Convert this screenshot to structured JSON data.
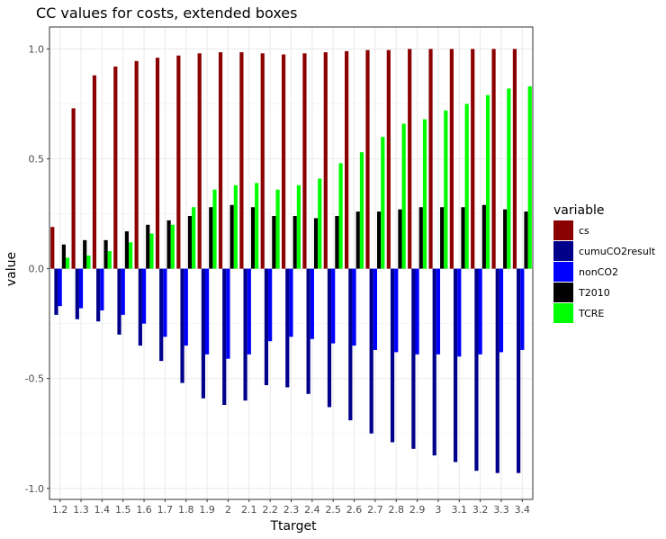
{
  "chart_data": {
    "type": "bar",
    "title": "CC values for costs, extended boxes",
    "xlabel": "Ttarget",
    "ylabel": "value",
    "ylim": [
      -1.05,
      1.1
    ],
    "yticks": [
      -1.0,
      -0.5,
      0.0,
      0.5,
      1.0
    ],
    "ytick_labels": [
      "-1.0",
      "-0.5",
      "0.0",
      "0.5",
      "1.0"
    ],
    "grid": true,
    "legend_title": "variable",
    "legend_position": "right",
    "categories": [
      "1.2",
      "1.3",
      "1.4",
      "1.5",
      "1.6",
      "1.7",
      "1.8",
      "1.9",
      "2",
      "2.1",
      "2.2",
      "2.3",
      "2.4",
      "2.5",
      "2.6",
      "2.7",
      "2.8",
      "2.9",
      "3",
      "3.1",
      "3.2",
      "3.3",
      "3.4"
    ],
    "series": [
      {
        "name": "cs",
        "color": "#8B0000",
        "values": [
          0.19,
          0.73,
          0.88,
          0.92,
          0.945,
          0.96,
          0.97,
          0.98,
          0.985,
          0.985,
          0.98,
          0.975,
          0.98,
          0.985,
          0.99,
          0.995,
          0.995,
          1.0,
          1.0,
          1.0,
          1.0,
          1.0,
          1.0
        ]
      },
      {
        "name": "cumuCO2result",
        "color": "#00008B",
        "values": [
          -0.21,
          -0.23,
          -0.24,
          -0.3,
          -0.35,
          -0.42,
          -0.52,
          -0.59,
          -0.62,
          -0.6,
          -0.53,
          -0.54,
          -0.57,
          -0.63,
          -0.69,
          -0.75,
          -0.79,
          -0.82,
          -0.85,
          -0.88,
          -0.92,
          -0.93,
          -0.93
        ]
      },
      {
        "name": "nonCO2",
        "color": "#0000FF",
        "values": [
          -0.17,
          -0.18,
          -0.19,
          -0.21,
          -0.25,
          -0.31,
          -0.35,
          -0.39,
          -0.41,
          -0.39,
          -0.33,
          -0.31,
          -0.32,
          -0.34,
          -0.35,
          -0.37,
          -0.38,
          -0.39,
          -0.39,
          -0.4,
          -0.39,
          -0.38,
          -0.37
        ]
      },
      {
        "name": "T2010",
        "color": "#000000",
        "values": [
          0.11,
          0.13,
          0.13,
          0.17,
          0.2,
          0.22,
          0.24,
          0.28,
          0.29,
          0.28,
          0.24,
          0.24,
          0.23,
          0.24,
          0.26,
          0.26,
          0.27,
          0.28,
          0.28,
          0.28,
          0.29,
          0.27,
          0.26
        ]
      },
      {
        "name": "TCRE",
        "color": "#00FF00",
        "values": [
          0.05,
          0.06,
          0.08,
          0.12,
          0.16,
          0.2,
          0.28,
          0.36,
          0.38,
          0.39,
          0.36,
          0.38,
          0.41,
          0.48,
          0.53,
          0.6,
          0.66,
          0.68,
          0.72,
          0.75,
          0.79,
          0.82,
          0.83
        ]
      }
    ]
  }
}
